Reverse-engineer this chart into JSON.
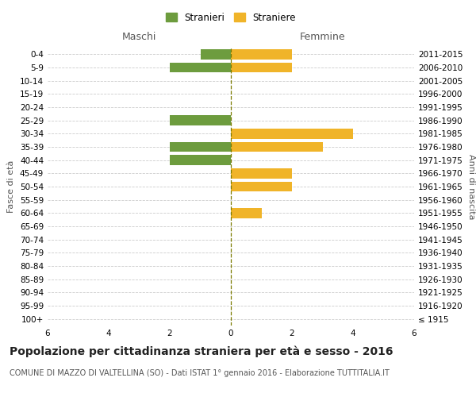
{
  "age_groups": [
    "100+",
    "95-99",
    "90-94",
    "85-89",
    "80-84",
    "75-79",
    "70-74",
    "65-69",
    "60-64",
    "55-59",
    "50-54",
    "45-49",
    "40-44",
    "35-39",
    "30-34",
    "25-29",
    "20-24",
    "15-19",
    "10-14",
    "5-9",
    "0-4"
  ],
  "birth_years": [
    "≤ 1915",
    "1916-1920",
    "1921-1925",
    "1926-1930",
    "1931-1935",
    "1936-1940",
    "1941-1945",
    "1946-1950",
    "1951-1955",
    "1956-1960",
    "1961-1965",
    "1966-1970",
    "1971-1975",
    "1976-1980",
    "1981-1985",
    "1986-1990",
    "1991-1995",
    "1996-2000",
    "2001-2005",
    "2006-2010",
    "2011-2015"
  ],
  "males": [
    0,
    0,
    0,
    0,
    0,
    0,
    0,
    0,
    0,
    0,
    0,
    0,
    2,
    2,
    0,
    2,
    0,
    0,
    0,
    2,
    1
  ],
  "females": [
    0,
    0,
    0,
    0,
    0,
    0,
    0,
    0,
    1,
    0,
    2,
    2,
    0,
    3,
    4,
    0,
    0,
    0,
    0,
    2,
    2
  ],
  "male_color": "#6d9c3e",
  "female_color": "#f0b429",
  "background_color": "#ffffff",
  "grid_color": "#cccccc",
  "title": "Popolazione per cittadinanza straniera per età e sesso - 2016",
  "subtitle": "COMUNE DI MAZZO DI VALTELLINA (SO) - Dati ISTAT 1° gennaio 2016 - Elaborazione TUTTITALIA.IT",
  "legend_male": "Stranieri",
  "legend_female": "Straniere",
  "header_left": "Maschi",
  "header_right": "Femmine",
  "ylabel_left": "Fasce di età",
  "ylabel_right": "Anni di nascita",
  "xlim": 6,
  "title_fontsize": 10,
  "subtitle_fontsize": 7,
  "tick_fontsize": 7.5,
  "header_fontsize": 9,
  "legend_fontsize": 8.5
}
